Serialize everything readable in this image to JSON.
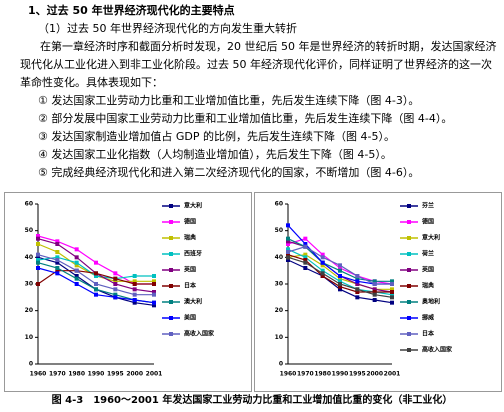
{
  "header": {
    "title": "1、过去 50 年世界经济现代化的主要特点",
    "subtitle": "（1）过去 50 年世界经济现代化的方向发生重大转折"
  },
  "paragraph": "在第一章经济时序和截面分析时发现，20 世纪后 50 年是世界经济的转折时期，发达国家经济现代化从工业化进入到非工业化阶段。过去 50 年经济现代化评价，同样证明了世界经济的这一次革命性变化。具体表现如下：",
  "items": [
    "① 发达国家工业劳动力比重和工业增加值比重，先后发生连续下降（图 4-3）。",
    "② 部分发展中国家工业劳动力比重和工业增加值比重，先后发生连续下降（图 4-4）。",
    "③ 发达国家制造业增加值占 GDP 的比例，先后发生连续下降（图 4-5）。",
    "④ 发达国家工业化指数（人均制造业增加值），先后发生下降（图 4-5）。",
    "⑤ 完成经典经济现代化和进入第二次经济现代化的国家，不断增加（图 4-6）。"
  ],
  "charts": [
    {
      "type": "line",
      "categories": [
        "1960",
        "1970",
        "1980",
        "1990",
        "1995",
        "2000",
        "2001"
      ],
      "ylim": [
        0,
        60
      ],
      "yticks": [
        0,
        10,
        20,
        30,
        40,
        50,
        60
      ],
      "series": [
        {
          "name": "意大利",
          "color": "#000080",
          "values": [
            40,
            38,
            33,
            28,
            25,
            23,
            22
          ]
        },
        {
          "name": "德国",
          "color": "#ff00ff",
          "values": [
            48,
            46,
            43,
            38,
            34,
            30,
            30
          ]
        },
        {
          "name": "瑞典",
          "color": "#c0c000",
          "values": [
            45,
            42,
            37,
            33,
            31,
            31,
            31
          ]
        },
        {
          "name": "西班牙",
          "color": "#00c0c0",
          "values": [
            39,
            40,
            38,
            33,
            32,
            33,
            33
          ]
        },
        {
          "name": "英国",
          "color": "#800080",
          "values": [
            47,
            45,
            40,
            34,
            30,
            28,
            27
          ]
        },
        {
          "name": "日本",
          "color": "#800000",
          "values": [
            30,
            35,
            35,
            34,
            32,
            30,
            30
          ]
        },
        {
          "name": "澳大利",
          "color": "#008080",
          "values": [
            38,
            36,
            32,
            28,
            26,
            24,
            23
          ]
        },
        {
          "name": "美国",
          "color": "#0000ff",
          "values": [
            36,
            34,
            30,
            26,
            25,
            24,
            23
          ]
        },
        {
          "name": "高收入国家",
          "color": "#6060c0",
          "values": [
            41,
            39,
            35,
            30,
            28,
            26,
            26
          ]
        }
      ]
    },
    {
      "type": "line",
      "categories": [
        "1960",
        "1970",
        "1980",
        "1990",
        "1995",
        "2000",
        "2001"
      ],
      "ylim": [
        0,
        60
      ],
      "yticks": [
        0,
        10,
        20,
        30,
        40,
        50,
        60
      ],
      "series": [
        {
          "name": "芬兰",
          "color": "#000080",
          "values": [
            39,
            36,
            33,
            28,
            25,
            24,
            23
          ]
        },
        {
          "name": "德国",
          "color": "#ff00ff",
          "values": [
            45,
            47,
            41,
            36,
            33,
            31,
            30
          ]
        },
        {
          "name": "意大利",
          "color": "#c0c000",
          "values": [
            40,
            41,
            37,
            32,
            30,
            28,
            28
          ]
        },
        {
          "name": "荷兰",
          "color": "#00c0c0",
          "values": [
            43,
            40,
            35,
            31,
            28,
            27,
            26
          ]
        },
        {
          "name": "英国",
          "color": "#800080",
          "values": [
            46,
            44,
            38,
            33,
            30,
            28,
            27
          ]
        },
        {
          "name": "瑞典",
          "color": "#800000",
          "values": [
            41,
            39,
            33,
            29,
            27,
            27,
            27
          ]
        },
        {
          "name": "奥地利",
          "color": "#008080",
          "values": [
            47,
            44,
            38,
            35,
            32,
            31,
            31
          ]
        },
        {
          "name": "挪威",
          "color": "#0000ff",
          "values": [
            52,
            45,
            38,
            33,
            31,
            30,
            30
          ]
        },
        {
          "name": "日本",
          "color": "#6060c0",
          "values": [
            42,
            44,
            40,
            37,
            33,
            30,
            30
          ]
        },
        {
          "name": "高收入国家",
          "color": "#404040",
          "values": [
            40,
            38,
            34,
            30,
            28,
            26,
            25
          ]
        }
      ]
    }
  ],
  "caption": "图 4-3　1960～2001 年发达国家工业劳动力比重和工业增加值比重的变化（非工业化）"
}
